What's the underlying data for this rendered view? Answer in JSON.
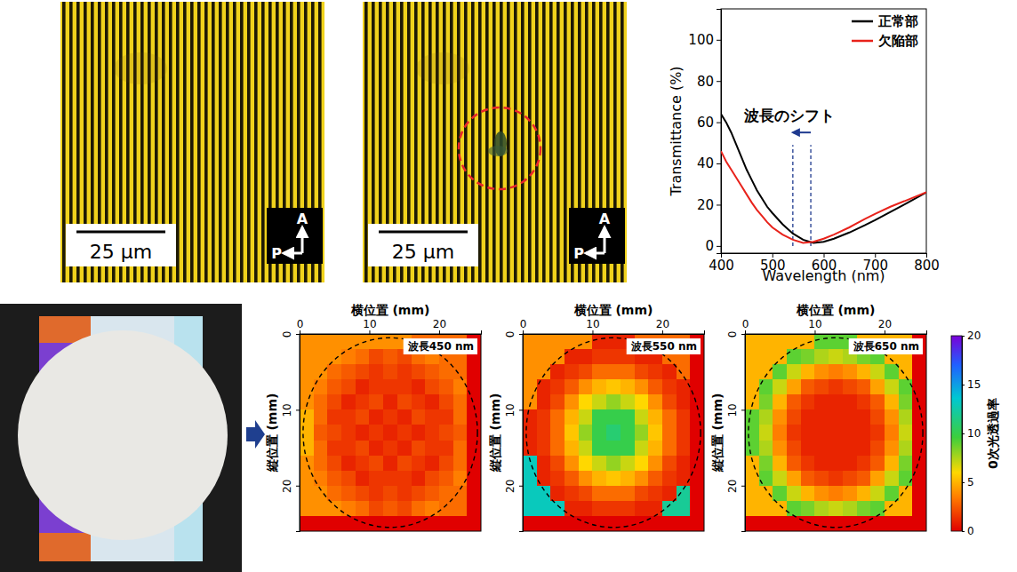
{
  "micrographs": [
    {
      "scale_bar": "25 µm",
      "polarizer": "P",
      "analyzer": "A",
      "defect_marked": false
    },
    {
      "scale_bar": "25 µm",
      "polarizer": "P",
      "analyzer": "A",
      "defect_marked": true
    }
  ],
  "colorbar": {
    "label": "0次光透過率",
    "range": [
      0,
      20
    ],
    "ticks": [
      0,
      5,
      10,
      15,
      20
    ]
  },
  "chart_data": [
    {
      "type": "line",
      "xlabel": "Wavelength (nm)",
      "ylabel": "Transmittance (%)",
      "xlim": [
        400,
        800
      ],
      "ylim": [
        -3.5,
        115
      ],
      "xticks": [
        400,
        500,
        600,
        700,
        800
      ],
      "yticks": [
        0,
        20,
        40,
        60,
        80,
        100
      ],
      "grid": false,
      "legend": "top-right",
      "x": [
        400,
        410,
        420,
        430,
        440,
        450,
        460,
        470,
        480,
        490,
        500,
        520,
        540,
        560,
        580,
        600,
        620,
        650,
        680,
        700,
        730,
        760,
        800
      ],
      "series": [
        {
          "name": "正常部",
          "color": "#000000",
          "values": [
            64,
            60,
            55,
            49,
            43,
            37,
            32,
            27,
            23,
            19,
            16,
            10.5,
            6,
            3,
            1.5,
            2,
            3.5,
            6.5,
            10,
            12.5,
            16.5,
            20.5,
            26
          ]
        },
        {
          "name": "欠陥部",
          "color": "#e8221b",
          "values": [
            46,
            41,
            37,
            33,
            29,
            25,
            21,
            17.5,
            14.5,
            11.5,
            9,
            5.5,
            3,
            1.5,
            2,
            3.5,
            5.5,
            9,
            13,
            15.5,
            19,
            22,
            26
          ]
        }
      ],
      "shift": {
        "text": "波長のシフト",
        "x": [
          575,
          540
        ],
        "y": [
          0,
          49
        ]
      }
    },
    {
      "type": "heatmap",
      "title": "波長450 nm",
      "xlabel": "横位置 (mm)",
      "ylabel": "縦位置 (mm)",
      "xlim": [
        0,
        26
      ],
      "ylim": [
        0,
        26
      ],
      "xticks": [
        0,
        10,
        20
      ],
      "yticks": [
        0,
        10,
        20
      ],
      "x_edges": [
        0,
        2,
        4,
        6,
        8,
        10,
        12,
        14,
        16,
        18,
        20,
        22,
        24,
        26
      ],
      "y_edges": [
        0,
        2,
        4,
        6,
        8,
        10,
        12,
        14,
        16,
        18,
        20,
        22,
        24,
        26
      ],
      "circle": {
        "cx": 13,
        "cy": 13,
        "r": 12.5
      },
      "cells": [
        [
          4,
          4,
          4,
          4,
          4,
          4,
          4,
          4,
          3,
          3,
          3,
          3,
          0
        ],
        [
          4,
          4,
          4,
          3.5,
          3,
          2,
          2.5,
          2,
          3,
          3.5,
          3,
          3,
          0
        ],
        [
          4,
          4,
          3,
          2.5,
          2,
          1.5,
          2,
          1.5,
          2,
          2.5,
          3,
          3,
          0
        ],
        [
          4,
          3.5,
          2.5,
          2,
          1,
          1.5,
          1.5,
          1.5,
          1,
          2,
          2.5,
          3.5,
          0
        ],
        [
          4,
          3,
          2,
          1,
          1.5,
          2,
          1,
          2,
          1.5,
          1,
          2,
          3,
          0
        ],
        [
          5,
          3,
          1.5,
          1.5,
          2,
          1,
          1.5,
          1,
          2,
          1.5,
          1.5,
          3,
          0
        ],
        [
          5,
          2.5,
          2,
          1.5,
          1,
          1.5,
          1,
          1.5,
          1,
          1.5,
          2,
          2.5,
          0
        ],
        [
          5,
          3,
          1.5,
          1.5,
          2,
          1,
          1.5,
          1,
          2,
          1.5,
          1.5,
          3,
          0
        ],
        [
          4,
          3,
          2,
          1,
          1.5,
          2,
          1,
          2,
          1.5,
          1,
          2,
          3,
          0
        ],
        [
          4,
          3.5,
          2.5,
          2,
          1,
          1.5,
          1.5,
          1.5,
          1,
          2,
          2.5,
          3.5,
          0
        ],
        [
          4,
          4,
          3,
          2.5,
          2,
          1.5,
          2,
          1.5,
          2,
          2.5,
          3,
          3,
          0
        ],
        [
          4,
          4,
          4,
          3.5,
          3,
          2,
          2.5,
          2,
          3,
          3.5,
          3,
          3,
          0
        ],
        [
          0,
          0,
          0,
          0,
          0,
          0,
          0,
          0,
          0,
          0,
          0,
          0,
          0
        ]
      ]
    },
    {
      "type": "heatmap",
      "title": "波長550 nm",
      "xlabel": "横位置 (mm)",
      "ylabel": "縦位置 (mm)",
      "xlim": [
        0,
        26
      ],
      "ylim": [
        0,
        26
      ],
      "xticks": [
        0,
        10,
        20
      ],
      "yticks": [
        0,
        10,
        20
      ],
      "x_edges": [
        0,
        2,
        4,
        6,
        8,
        10,
        12,
        14,
        16,
        18,
        20,
        22,
        24,
        26
      ],
      "y_edges": [
        0,
        2,
        4,
        6,
        8,
        10,
        12,
        14,
        16,
        18,
        20,
        22,
        24,
        26
      ],
      "circle": {
        "cx": 13,
        "cy": 13,
        "r": 12.5
      },
      "cells": [
        [
          4,
          4,
          4,
          4,
          4,
          1,
          1,
          1,
          3,
          3,
          3,
          3,
          0
        ],
        [
          4,
          4,
          4,
          1,
          1,
          1.5,
          1.5,
          1.5,
          1,
          1,
          3,
          3,
          0
        ],
        [
          4,
          4,
          1,
          1.5,
          2,
          3,
          3,
          3,
          2,
          1.5,
          1,
          3,
          0
        ],
        [
          4,
          1,
          1.5,
          2.5,
          4,
          5,
          5.5,
          5,
          4,
          2.5,
          1.5,
          1,
          0
        ],
        [
          4,
          1,
          2,
          4,
          6,
          7,
          8,
          7,
          6,
          4,
          2,
          1,
          0
        ],
        [
          1,
          1.5,
          3,
          5,
          7,
          10,
          10,
          10,
          7,
          5,
          3,
          1.5,
          0
        ],
        [
          1,
          1.5,
          3,
          5.5,
          8,
          10,
          11,
          10,
          8,
          5.5,
          3,
          1.5,
          0
        ],
        [
          1,
          1.5,
          3,
          5,
          7,
          10,
          10,
          10,
          7,
          5,
          3,
          1.5,
          0
        ],
        [
          13,
          1,
          2,
          4,
          6,
          7,
          8,
          7,
          6,
          4,
          2,
          1,
          0
        ],
        [
          13,
          1,
          1.5,
          2.5,
          4,
          5,
          5.5,
          5,
          4,
          2.5,
          1.5,
          1,
          0
        ],
        [
          13,
          13,
          1,
          1.5,
          2,
          3,
          3,
          3,
          2,
          1.5,
          1,
          12,
          0
        ],
        [
          13,
          13,
          13,
          1,
          1,
          1.5,
          1.5,
          1.5,
          1,
          1,
          12,
          12,
          0
        ],
        [
          0,
          0,
          0,
          0,
          0,
          0,
          0,
          0,
          0,
          0,
          0,
          0,
          0
        ]
      ]
    },
    {
      "type": "heatmap",
      "title": "波長650 nm",
      "xlabel": "横位置 (mm)",
      "ylabel": "縦位置 (mm)",
      "xlim": [
        0,
        26
      ],
      "ylim": [
        0,
        26
      ],
      "xticks": [
        0,
        10,
        20
      ],
      "yticks": [
        0,
        10,
        20
      ],
      "x_edges": [
        0,
        2,
        4,
        6,
        8,
        10,
        12,
        14,
        16,
        18,
        20,
        22,
        24,
        26
      ],
      "y_edges": [
        0,
        2,
        4,
        6,
        8,
        10,
        12,
        14,
        16,
        18,
        20,
        22,
        24,
        26
      ],
      "circle": {
        "cx": 13,
        "cy": 13,
        "r": 12.5
      },
      "cells": [
        [
          5,
          5,
          5,
          5,
          5,
          9,
          9,
          9,
          5,
          5,
          5,
          5,
          0
        ],
        [
          5,
          5,
          5,
          9,
          8.5,
          7.5,
          7,
          7.5,
          8.5,
          9,
          5,
          5,
          0
        ],
        [
          5,
          5,
          9,
          7,
          5,
          4,
          3.5,
          4,
          5,
          7,
          9,
          5,
          0
        ],
        [
          5,
          9,
          7,
          4.5,
          2.5,
          2,
          1.5,
          2,
          2.5,
          4.5,
          7,
          9,
          0
        ],
        [
          5,
          8.5,
          5,
          2.5,
          1.5,
          1,
          1,
          1,
          1.5,
          2.5,
          5,
          8.5,
          0
        ],
        [
          9,
          7.5,
          4,
          2,
          1,
          1,
          1,
          1,
          1,
          2,
          4,
          7.5,
          0
        ],
        [
          9,
          7,
          3.5,
          1.5,
          1,
          1,
          1,
          1,
          1,
          1.5,
          3.5,
          7,
          0
        ],
        [
          9,
          7.5,
          4,
          2,
          1,
          1,
          1,
          1,
          1,
          2,
          4,
          7.5,
          0
        ],
        [
          5,
          8.5,
          5,
          2.5,
          1.5,
          1,
          1,
          1,
          1.5,
          2.5,
          5,
          8.5,
          0
        ],
        [
          5,
          9,
          7,
          4.5,
          2.5,
          2,
          1.5,
          2,
          2.5,
          4.5,
          7,
          9,
          0
        ],
        [
          5,
          5,
          9,
          7,
          5,
          4,
          3.5,
          4,
          5,
          7,
          9,
          5,
          0
        ],
        [
          5,
          5,
          5,
          9,
          8.5,
          7.5,
          7,
          7.5,
          8.5,
          9,
          5,
          5,
          0
        ],
        [
          0,
          0,
          0,
          0,
          0,
          0,
          0,
          0,
          0,
          0,
          0,
          0,
          0
        ]
      ]
    }
  ]
}
